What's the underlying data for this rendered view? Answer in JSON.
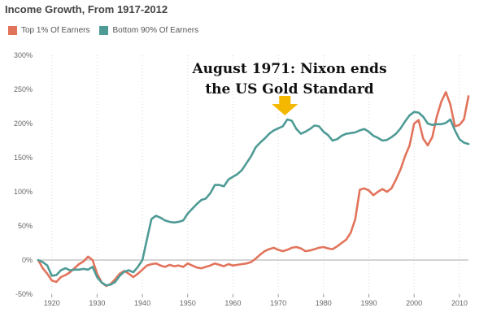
{
  "chart_data": {
    "type": "line",
    "title": "Income Growth, From 1917-2012",
    "xlim": [
      1917,
      2012
    ],
    "ylim": [
      -50,
      300
    ],
    "yticks": [
      {
        "value": -50,
        "label": "-50%"
      },
      {
        "value": 0,
        "label": "0%"
      },
      {
        "value": 50,
        "label": "50%"
      },
      {
        "value": 100,
        "label": "100%"
      },
      {
        "value": 150,
        "label": "150%"
      },
      {
        "value": 200,
        "label": "200%"
      },
      {
        "value": 250,
        "label": "250%"
      },
      {
        "value": 300,
        "label": "300%"
      }
    ],
    "xticks": [
      {
        "value": 1920,
        "label": "1920"
      },
      {
        "value": 1930,
        "label": "1930"
      },
      {
        "value": 1940,
        "label": "1940"
      },
      {
        "value": 1950,
        "label": "1950"
      },
      {
        "value": 1960,
        "label": "1960"
      },
      {
        "value": 1970,
        "label": "1970"
      },
      {
        "value": 1980,
        "label": "1980"
      },
      {
        "value": 1990,
        "label": "1990"
      },
      {
        "value": 2000,
        "label": "2000"
      },
      {
        "value": 2010,
        "label": "2010"
      }
    ],
    "grid": "vertical dotted",
    "legend": "top-left",
    "series": [
      {
        "name": "Top 1% Of Earners",
        "color": "#e2735b",
        "points": [
          [
            1917,
            0
          ],
          [
            1918,
            -12
          ],
          [
            1919,
            -20
          ],
          [
            1920,
            -30
          ],
          [
            1921,
            -32
          ],
          [
            1922,
            -25
          ],
          [
            1923,
            -22
          ],
          [
            1924,
            -18
          ],
          [
            1925,
            -12
          ],
          [
            1926,
            -6
          ],
          [
            1927,
            -2
          ],
          [
            1928,
            5
          ],
          [
            1929,
            0
          ],
          [
            1930,
            -20
          ],
          [
            1931,
            -33
          ],
          [
            1932,
            -38
          ],
          [
            1933,
            -35
          ],
          [
            1934,
            -28
          ],
          [
            1935,
            -20
          ],
          [
            1936,
            -16
          ],
          [
            1937,
            -20
          ],
          [
            1938,
            -25
          ],
          [
            1939,
            -20
          ],
          [
            1940,
            -14
          ],
          [
            1941,
            -8
          ],
          [
            1942,
            -6
          ],
          [
            1943,
            -5
          ],
          [
            1944,
            -8
          ],
          [
            1945,
            -10
          ],
          [
            1946,
            -7
          ],
          [
            1947,
            -9
          ],
          [
            1948,
            -8
          ],
          [
            1949,
            -10
          ],
          [
            1950,
            -5
          ],
          [
            1951,
            -8
          ],
          [
            1952,
            -11
          ],
          [
            1953,
            -12
          ],
          [
            1954,
            -10
          ],
          [
            1955,
            -8
          ],
          [
            1956,
            -5
          ],
          [
            1957,
            -7
          ],
          [
            1958,
            -9
          ],
          [
            1959,
            -6
          ],
          [
            1960,
            -8
          ],
          [
            1961,
            -7
          ],
          [
            1962,
            -6
          ],
          [
            1963,
            -5
          ],
          [
            1964,
            -3
          ],
          [
            1965,
            2
          ],
          [
            1966,
            8
          ],
          [
            1967,
            13
          ],
          [
            1968,
            16
          ],
          [
            1969,
            18
          ],
          [
            1970,
            15
          ],
          [
            1971,
            13
          ],
          [
            1972,
            15
          ],
          [
            1973,
            18
          ],
          [
            1974,
            19
          ],
          [
            1975,
            17
          ],
          [
            1976,
            13
          ],
          [
            1977,
            14
          ],
          [
            1978,
            16
          ],
          [
            1979,
            18
          ],
          [
            1980,
            19
          ],
          [
            1981,
            17
          ],
          [
            1982,
            16
          ],
          [
            1983,
            20
          ],
          [
            1984,
            25
          ],
          [
            1985,
            30
          ],
          [
            1986,
            40
          ],
          [
            1987,
            60
          ],
          [
            1988,
            103
          ],
          [
            1989,
            105
          ],
          [
            1990,
            102
          ],
          [
            1991,
            95
          ],
          [
            1992,
            100
          ],
          [
            1993,
            104
          ],
          [
            1994,
            100
          ],
          [
            1995,
            105
          ],
          [
            1996,
            118
          ],
          [
            1997,
            133
          ],
          [
            1998,
            152
          ],
          [
            1999,
            168
          ],
          [
            2000,
            200
          ],
          [
            2001,
            205
          ],
          [
            2002,
            178
          ],
          [
            2003,
            168
          ],
          [
            2004,
            180
          ],
          [
            2005,
            210
          ],
          [
            2006,
            232
          ],
          [
            2007,
            246
          ],
          [
            2008,
            228
          ],
          [
            2009,
            196
          ],
          [
            2010,
            198
          ],
          [
            2011,
            206
          ],
          [
            2012,
            240
          ]
        ]
      },
      {
        "name": "Bottom 90% Of Earners",
        "color": "#4e9b96",
        "points": [
          [
            1917,
            0
          ],
          [
            1918,
            -3
          ],
          [
            1919,
            -8
          ],
          [
            1920,
            -23
          ],
          [
            1921,
            -22
          ],
          [
            1922,
            -15
          ],
          [
            1923,
            -12
          ],
          [
            1924,
            -15
          ],
          [
            1925,
            -14
          ],
          [
            1926,
            -14
          ],
          [
            1927,
            -13
          ],
          [
            1928,
            -14
          ],
          [
            1929,
            -10
          ],
          [
            1930,
            -25
          ],
          [
            1931,
            -33
          ],
          [
            1932,
            -37
          ],
          [
            1933,
            -36
          ],
          [
            1934,
            -32
          ],
          [
            1935,
            -23
          ],
          [
            1936,
            -17
          ],
          [
            1937,
            -15
          ],
          [
            1938,
            -18
          ],
          [
            1939,
            -10
          ],
          [
            1940,
            0
          ],
          [
            1941,
            30
          ],
          [
            1942,
            60
          ],
          [
            1943,
            65
          ],
          [
            1944,
            62
          ],
          [
            1945,
            58
          ],
          [
            1946,
            56
          ],
          [
            1947,
            55
          ],
          [
            1948,
            56
          ],
          [
            1949,
            58
          ],
          [
            1950,
            68
          ],
          [
            1951,
            75
          ],
          [
            1952,
            82
          ],
          [
            1953,
            88
          ],
          [
            1954,
            90
          ],
          [
            1955,
            98
          ],
          [
            1956,
            110
          ],
          [
            1957,
            110
          ],
          [
            1958,
            108
          ],
          [
            1959,
            118
          ],
          [
            1960,
            122
          ],
          [
            1961,
            126
          ],
          [
            1962,
            132
          ],
          [
            1963,
            142
          ],
          [
            1964,
            152
          ],
          [
            1965,
            165
          ],
          [
            1966,
            172
          ],
          [
            1967,
            178
          ],
          [
            1968,
            185
          ],
          [
            1969,
            190
          ],
          [
            1970,
            193
          ],
          [
            1971,
            196
          ],
          [
            1972,
            206
          ],
          [
            1973,
            204
          ],
          [
            1974,
            192
          ],
          [
            1975,
            185
          ],
          [
            1976,
            188
          ],
          [
            1977,
            192
          ],
          [
            1978,
            197
          ],
          [
            1979,
            196
          ],
          [
            1980,
            188
          ],
          [
            1981,
            183
          ],
          [
            1982,
            175
          ],
          [
            1983,
            177
          ],
          [
            1984,
            182
          ],
          [
            1985,
            185
          ],
          [
            1986,
            186
          ],
          [
            1987,
            187
          ],
          [
            1988,
            190
          ],
          [
            1989,
            192
          ],
          [
            1990,
            188
          ],
          [
            1991,
            182
          ],
          [
            1992,
            179
          ],
          [
            1993,
            175
          ],
          [
            1994,
            176
          ],
          [
            1995,
            180
          ],
          [
            1996,
            185
          ],
          [
            1997,
            193
          ],
          [
            1998,
            203
          ],
          [
            1999,
            212
          ],
          [
            2000,
            217
          ],
          [
            2001,
            216
          ],
          [
            2002,
            210
          ],
          [
            2003,
            200
          ],
          [
            2004,
            198
          ],
          [
            2005,
            199
          ],
          [
            2006,
            199
          ],
          [
            2007,
            201
          ],
          [
            2008,
            206
          ],
          [
            2009,
            190
          ],
          [
            2010,
            177
          ],
          [
            2011,
            172
          ],
          [
            2012,
            170
          ]
        ]
      }
    ],
    "annotation": {
      "lines": [
        "August 1971: Nixon ends",
        "the US Gold Standard"
      ],
      "arrow_color": "#f5b800",
      "arrow_target_x": 1972
    }
  }
}
